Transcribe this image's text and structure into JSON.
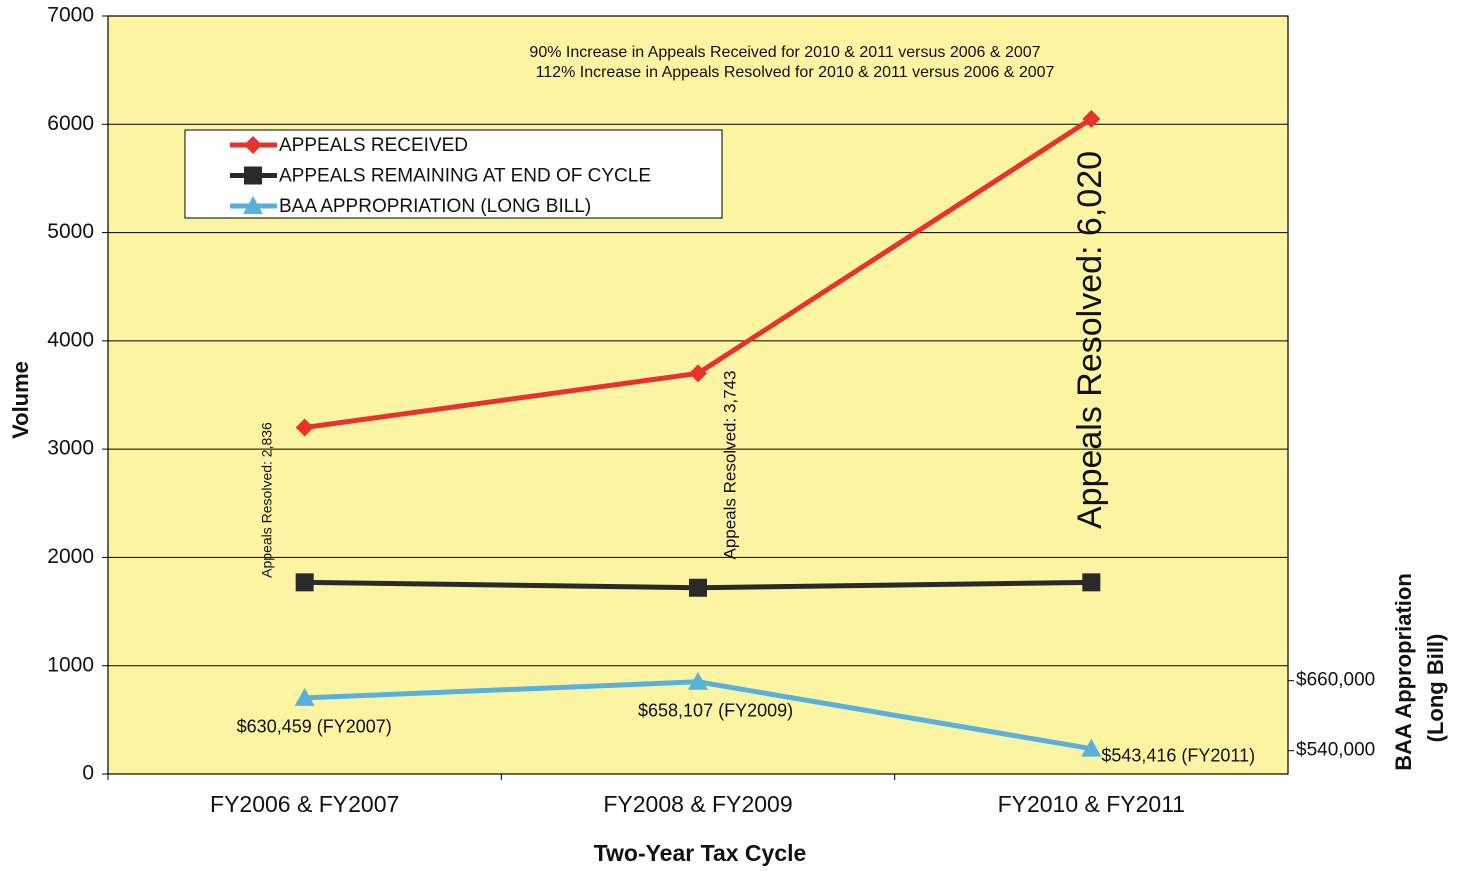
{
  "chart_data": {
    "type": "line",
    "categories": [
      "FY2006 & FY2007",
      "FY2008 & FY2009",
      "FY2010 & FY2011"
    ],
    "series": [
      {
        "name": "APPEALS RECEIVED",
        "color": "#e8322c",
        "marker": "diamond",
        "values": [
          3200,
          3700,
          6050
        ]
      },
      {
        "name": "APPEALS REMAINING AT END OF CYCLE",
        "color": "#2a2a2a",
        "marker": "square",
        "values": [
          1770,
          1720,
          1770
        ]
      },
      {
        "name": "BAA APPROPRIATION (LONG BILL)",
        "color": "#5ab0dc",
        "marker": "triangle",
        "axis": "y2",
        "values": [
          630459,
          658107,
          543416
        ],
        "value_labels": [
          "$630,459  (FY2007)",
          "$658,107  (FY2009)",
          "$543,416  (FY2011)"
        ]
      }
    ],
    "ylim": [
      0,
      7000
    ],
    "yticks": [
      0,
      1000,
      2000,
      3000,
      4000,
      5000,
      6000,
      7000
    ],
    "y2lim": [
      500000,
      1800000
    ],
    "y2ticks": [
      {
        "value": 540000,
        "label": "$540,000"
      },
      {
        "value": 660000,
        "label": "$660,000"
      }
    ],
    "xlabel": "Two-Year Tax Cycle",
    "ylabel": "Volume",
    "y2label": [
      "BAA Appropriation",
      "(Long Bill)"
    ],
    "annotations": [
      "90% Increase  in Appeals Received for 2010 & 2011 versus 2006 & 2007",
      "112% Increase  in Appeals  Resolved for 2010 & 2011  versus 2006 & 2007",
      "Appeals Resolved: 2,836",
      "Appeals Resolved: 3,743",
      "Appeals Resolved: 6,020"
    ],
    "grid": true,
    "legend": "upper left",
    "plot_background": "#fbf5a3"
  }
}
